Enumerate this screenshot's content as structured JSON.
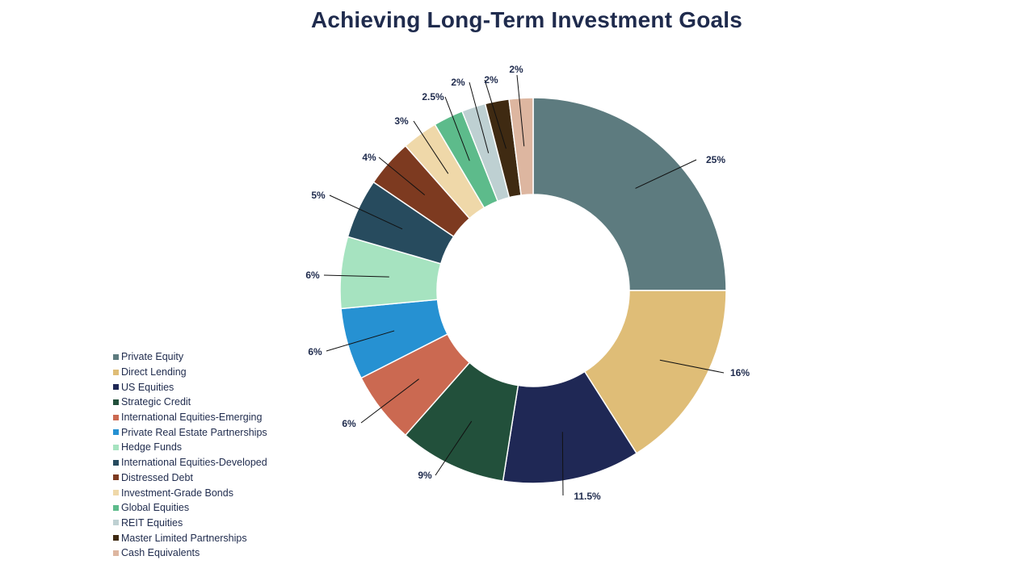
{
  "chart_data": {
    "type": "pie",
    "title": "Achieving Long-Term Investment Goals",
    "donut": true,
    "legend_position": "bottom-left",
    "categories": [
      "Private Equity",
      "Direct Lending",
      "US Equities",
      "Strategic Credit",
      "International Equities-Emerging",
      "Private Real Estate Partnerships",
      "Hedge Funds",
      "International Equities-Developed",
      "Distressed Debt",
      "Investment-Grade Bonds",
      "Global Equities",
      "REIT Equities",
      "Master Limited Partnerships",
      "Cash Equivalents"
    ],
    "values": [
      25,
      16,
      11.5,
      9,
      6,
      6,
      6,
      5,
      4,
      3,
      2.5,
      2,
      2,
      2
    ],
    "data_labels": [
      "25%",
      "16%",
      "11.5%",
      "9%",
      "6%",
      "6%",
      "6%",
      "5%",
      "4%",
      "3%",
      "2.5%",
      "2%",
      "2%",
      "2%"
    ],
    "colors": [
      "#5d7b7f",
      "#dfbd77",
      "#1f2855",
      "#22503b",
      "#cb6951",
      "#2691d2",
      "#a6e3c0",
      "#274b5e",
      "#7d3a20",
      "#efd8a9",
      "#5dbb8b",
      "#bed0d2",
      "#3f2a12",
      "#ddb6a0"
    ]
  }
}
